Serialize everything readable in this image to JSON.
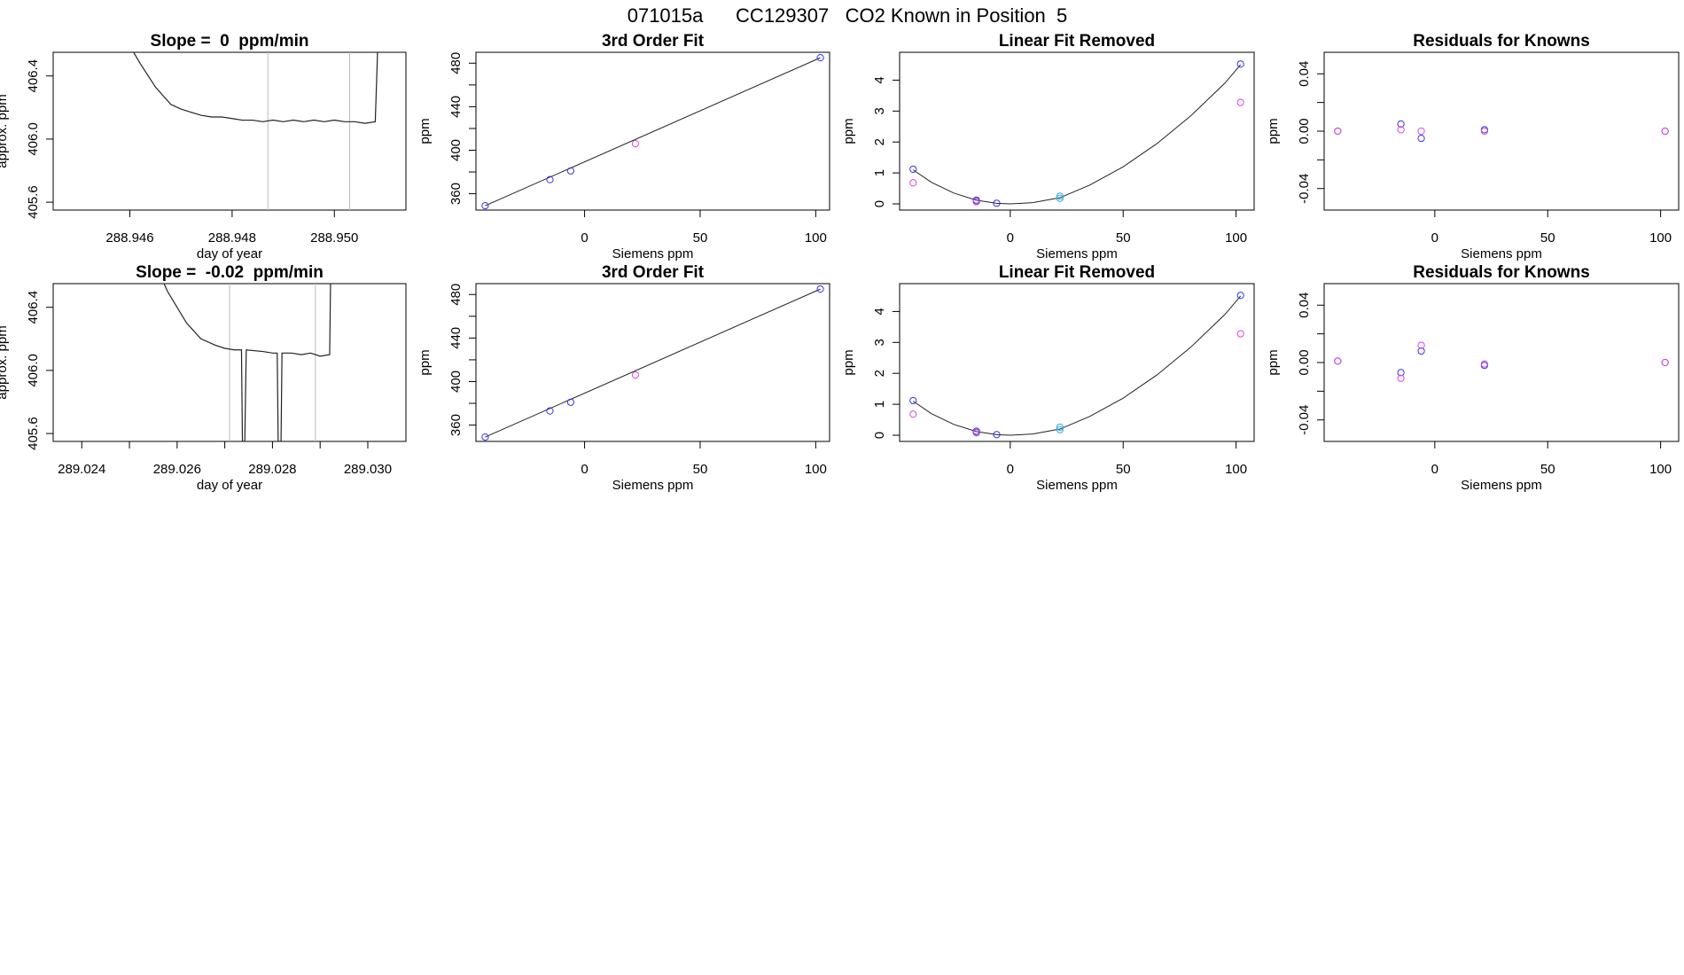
{
  "page_title": "071015a      CC129307   CO2 Known in Position  5",
  "chart_data": [
    {
      "type": "line",
      "title": "Slope =  0  ppm/min",
      "xlabel": "day of year",
      "ylabel": "approx. ppm",
      "xlim": [
        288.9445,
        288.9514
      ],
      "ylim": [
        405.55,
        406.55
      ],
      "xticks": [
        288.946,
        288.948,
        288.95
      ],
      "xtick_labels": [
        "288.946",
        "288.948",
        "288.950"
      ],
      "yticks": [
        405.6,
        406.0,
        406.4
      ],
      "ytick_labels": [
        "405.6",
        "406.0",
        "406.4"
      ],
      "vlines": [
        288.9487,
        288.9503
      ],
      "vline_color": "#bbbbbb",
      "trace": [
        [
          288.9458,
          406.7
        ],
        [
          288.9462,
          406.48
        ],
        [
          288.9465,
          406.33
        ],
        [
          288.9468,
          406.22
        ],
        [
          288.947,
          406.19
        ],
        [
          288.9472,
          406.17
        ],
        [
          288.9474,
          406.15
        ],
        [
          288.9476,
          406.14
        ],
        [
          288.9478,
          406.14
        ],
        [
          288.948,
          406.13
        ],
        [
          288.9482,
          406.12
        ],
        [
          288.9484,
          406.12
        ],
        [
          288.9486,
          406.11
        ],
        [
          288.9488,
          406.12
        ],
        [
          288.949,
          406.11
        ],
        [
          288.9492,
          406.12
        ],
        [
          288.9494,
          406.11
        ],
        [
          288.9496,
          406.12
        ],
        [
          288.9498,
          406.11
        ],
        [
          288.95,
          406.12
        ],
        [
          288.9502,
          406.11
        ],
        [
          288.9504,
          406.11
        ],
        [
          288.9506,
          406.1
        ],
        [
          288.9508,
          406.11
        ],
        [
          288.95085,
          406.6
        ]
      ]
    },
    {
      "type": "scatter",
      "title": "3rd Order Fit",
      "xlabel": "Siemens ppm",
      "ylabel": "ppm",
      "xlim": [
        -47,
        106
      ],
      "ylim": [
        345,
        490
      ],
      "xticks": [
        0,
        50,
        100
      ],
      "xtick_labels": [
        "0",
        "50",
        "100"
      ],
      "yticks": [
        360,
        400,
        440,
        480
      ],
      "ytick_labels": [
        "360",
        "400",
        "440",
        "480"
      ],
      "yminor_ticks": [
        380,
        420,
        460
      ],
      "fit_line": [
        [
          -43,
          349
        ],
        [
          102,
          485
        ]
      ],
      "series": [
        {
          "name": "blue",
          "color": "#3333ee",
          "points": [
            [
              -43,
              349
            ],
            [
              -15,
              373
            ],
            [
              -6,
              381
            ],
            [
              102,
              485
            ]
          ]
        },
        {
          "name": "magenta",
          "color": "#dd44dd",
          "points": [
            [
              22,
              406
            ]
          ]
        }
      ]
    },
    {
      "type": "scatter",
      "title": "Linear Fit Removed",
      "xlabel": "Siemens ppm",
      "ylabel": "ppm",
      "xlim": [
        -49,
        108
      ],
      "ylim": [
        -0.2,
        4.9
      ],
      "xticks": [
        0,
        50,
        100
      ],
      "xtick_labels": [
        "0",
        "50",
        "100"
      ],
      "yticks": [
        0,
        1,
        2,
        3,
        4
      ],
      "ytick_labels": [
        "0",
        "1",
        "2",
        "3",
        "4"
      ],
      "curve": [
        [
          -43,
          1.1
        ],
        [
          -35,
          0.7
        ],
        [
          -25,
          0.35
        ],
        [
          -15,
          0.12
        ],
        [
          -6,
          0.02
        ],
        [
          0,
          0.0
        ],
        [
          10,
          0.04
        ],
        [
          22,
          0.2
        ],
        [
          35,
          0.6
        ],
        [
          50,
          1.2
        ],
        [
          65,
          1.95
        ],
        [
          80,
          2.85
        ],
        [
          95,
          3.9
        ],
        [
          102,
          4.5
        ]
      ],
      "series": [
        {
          "name": "blue",
          "color": "#3333ee",
          "points": [
            [
              -43,
              1.12
            ],
            [
              -15,
              0.12
            ],
            [
              -15,
              0.08
            ],
            [
              -6,
              0.02
            ],
            [
              102,
              4.52
            ]
          ]
        },
        {
          "name": "magenta",
          "color": "#dd44dd",
          "points": [
            [
              -43,
              0.68
            ],
            [
              -15,
              0.07
            ],
            [
              102,
              3.28
            ]
          ]
        },
        {
          "name": "cyan",
          "color": "#33aadd",
          "points": [
            [
              22,
              0.25
            ],
            [
              22,
              0.18
            ]
          ]
        }
      ]
    },
    {
      "type": "scatter",
      "title": "Residuals for Knowns",
      "xlabel": "Siemens ppm",
      "ylabel": "ppm",
      "xlim": [
        -49,
        108
      ],
      "ylim": [
        -0.055,
        0.055
      ],
      "xticks": [
        0,
        50,
        100
      ],
      "xtick_labels": [
        "0",
        "50",
        "100"
      ],
      "yticks": [
        -0.04,
        0.0,
        0.04
      ],
      "ytick_labels": [
        "-0.04",
        "0.00",
        "0.04"
      ],
      "yminor_ticks": [
        -0.02,
        0.02
      ],
      "series": [
        {
          "name": "blue",
          "color": "#3333ee",
          "points": [
            [
              -43,
              0.0
            ],
            [
              -15,
              0.005
            ],
            [
              -6,
              -0.005
            ],
            [
              22,
              0.001
            ],
            [
              102,
              0.0
            ]
          ]
        },
        {
          "name": "magenta",
          "color": "#dd44dd",
          "points": [
            [
              -43,
              0.0
            ],
            [
              -15,
              0.001
            ],
            [
              -6,
              0.0
            ],
            [
              22,
              0.0
            ],
            [
              102,
              0.0
            ]
          ]
        }
      ]
    },
    {
      "type": "line",
      "title": "Slope =  -0.02  ppm/min",
      "xlabel": "day of year",
      "ylabel": "approx. ppm",
      "xlim": [
        289.0234,
        289.0308
      ],
      "ylim": [
        405.55,
        406.55
      ],
      "xticks": [
        289.024,
        289.025,
        289.026,
        289.027,
        289.028,
        289.029,
        289.03
      ],
      "xtick_labels": [
        "289.024",
        "",
        "289.026",
        "",
        "289.028",
        "",
        "289.030"
      ],
      "yticks": [
        405.6,
        406.0,
        406.4
      ],
      "ytick_labels": [
        "405.6",
        "406.0",
        "406.4"
      ],
      "vlines": [
        289.0271,
        289.0289
      ],
      "vline_color": "#bbbbbb",
      "trace": [
        [
          289.0255,
          406.7
        ],
        [
          289.0258,
          406.5
        ],
        [
          289.0262,
          406.3
        ],
        [
          289.0265,
          406.2
        ],
        [
          289.0268,
          406.16
        ],
        [
          289.027,
          406.14
        ],
        [
          289.0272,
          406.13
        ],
        [
          289.02735,
          406.13
        ],
        [
          289.02737,
          405.55
        ],
        [
          289.02742,
          405.55
        ],
        [
          289.02745,
          406.13
        ],
        [
          289.0278,
          406.12
        ],
        [
          289.028,
          406.11
        ],
        [
          289.0281,
          406.11
        ],
        [
          289.02812,
          405.55
        ],
        [
          289.02818,
          405.55
        ],
        [
          289.0282,
          406.11
        ],
        [
          289.0284,
          406.11
        ],
        [
          289.0286,
          406.1
        ],
        [
          289.0288,
          406.11
        ],
        [
          289.029,
          406.09
        ],
        [
          289.0292,
          406.1
        ],
        [
          289.02922,
          406.6
        ]
      ]
    },
    {
      "type": "scatter",
      "title": "3rd Order Fit",
      "xlabel": "Siemens ppm",
      "ylabel": "ppm",
      "xlim": [
        -47,
        106
      ],
      "ylim": [
        345,
        490
      ],
      "xticks": [
        0,
        50,
        100
      ],
      "xtick_labels": [
        "0",
        "50",
        "100"
      ],
      "yticks": [
        360,
        400,
        440,
        480
      ],
      "ytick_labels": [
        "360",
        "400",
        "440",
        "480"
      ],
      "yminor_ticks": [
        380,
        420,
        460
      ],
      "fit_line": [
        [
          -43,
          349
        ],
        [
          102,
          485
        ]
      ],
      "series": [
        {
          "name": "blue",
          "color": "#3333ee",
          "points": [
            [
              -43,
              349
            ],
            [
              -15,
              373
            ],
            [
              -6,
              381
            ],
            [
              102,
              485
            ]
          ]
        },
        {
          "name": "magenta",
          "color": "#dd44dd",
          "points": [
            [
              22,
              406
            ]
          ]
        }
      ]
    },
    {
      "type": "scatter",
      "title": "Linear Fit Removed",
      "xlabel": "Siemens ppm",
      "ylabel": "ppm",
      "xlim": [
        -49,
        108
      ],
      "ylim": [
        -0.2,
        4.9
      ],
      "xticks": [
        0,
        50,
        100
      ],
      "xtick_labels": [
        "0",
        "50",
        "100"
      ],
      "yticks": [
        0,
        1,
        2,
        3,
        4
      ],
      "ytick_labels": [
        "0",
        "1",
        "2",
        "3",
        "4"
      ],
      "curve": [
        [
          -43,
          1.1
        ],
        [
          -35,
          0.7
        ],
        [
          -25,
          0.35
        ],
        [
          -15,
          0.12
        ],
        [
          -6,
          0.02
        ],
        [
          0,
          0.0
        ],
        [
          10,
          0.04
        ],
        [
          22,
          0.2
        ],
        [
          35,
          0.6
        ],
        [
          50,
          1.2
        ],
        [
          65,
          1.95
        ],
        [
          80,
          2.85
        ],
        [
          95,
          3.9
        ],
        [
          102,
          4.5
        ]
      ],
      "series": [
        {
          "name": "blue",
          "color": "#3333ee",
          "points": [
            [
              -43,
              1.12
            ],
            [
              -15,
              0.13
            ],
            [
              -15,
              0.09
            ],
            [
              -6,
              0.02
            ],
            [
              102,
              4.52
            ]
          ]
        },
        {
          "name": "magenta",
          "color": "#dd44dd",
          "points": [
            [
              -43,
              0.68
            ],
            [
              -15,
              0.08
            ],
            [
              102,
              3.28
            ]
          ]
        },
        {
          "name": "cyan",
          "color": "#33aadd",
          "points": [
            [
              22,
              0.26
            ],
            [
              22,
              0.18
            ]
          ]
        }
      ]
    },
    {
      "type": "scatter",
      "title": "Residuals for Knowns",
      "xlabel": "Siemens ppm",
      "ylabel": "ppm",
      "xlim": [
        -49,
        108
      ],
      "ylim": [
        -0.055,
        0.055
      ],
      "xticks": [
        0,
        50,
        100
      ],
      "xtick_labels": [
        "0",
        "50",
        "100"
      ],
      "yticks": [
        -0.04,
        0.0,
        0.04
      ],
      "ytick_labels": [
        "-0.04",
        "0.00",
        "0.04"
      ],
      "yminor_ticks": [
        -0.02,
        0.02
      ],
      "series": [
        {
          "name": "blue",
          "color": "#3333ee",
          "points": [
            [
              -43,
              0.001
            ],
            [
              -15,
              -0.007
            ],
            [
              -6,
              0.008
            ],
            [
              22,
              -0.002
            ],
            [
              102,
              0.0
            ]
          ]
        },
        {
          "name": "magenta",
          "color": "#dd44dd",
          "points": [
            [
              -43,
              0.001
            ],
            [
              -15,
              -0.011
            ],
            [
              -6,
              0.012
            ],
            [
              22,
              -0.001
            ],
            [
              102,
              0.0
            ]
          ]
        }
      ]
    }
  ]
}
